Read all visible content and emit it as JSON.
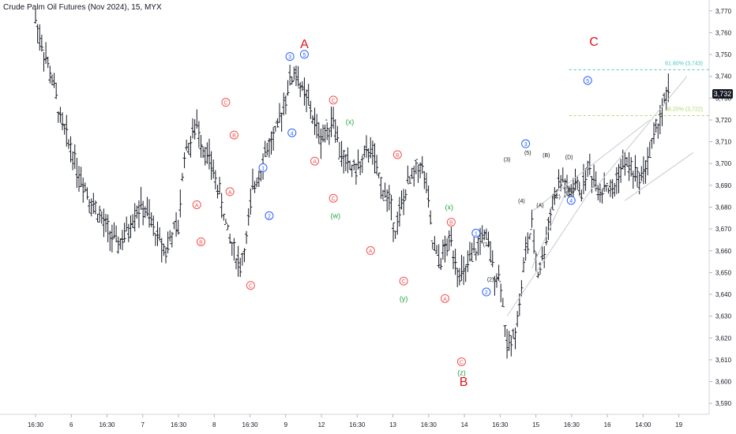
{
  "title": "Crude Palm Oil Futures (Nov 2024), 15, MYX",
  "chart_data": {
    "type": "bar",
    "title": "Crude Palm Oil Futures (Nov 2024), 15, MYX",
    "ylim": [
      3585,
      3775
    ],
    "y_ticks": [
      "3,590",
      "3,600",
      "3,610",
      "3,620",
      "3,630",
      "3,640",
      "3,650",
      "3,660",
      "3,670",
      "3,680",
      "3,690",
      "3,700",
      "3,710",
      "3,720",
      "3,730",
      "3,740",
      "3,750",
      "3,760",
      "3,770"
    ],
    "x_ticks": [
      "16:30",
      "6",
      "16:30",
      "7",
      "16:30",
      "8",
      "16:30",
      "9",
      "12",
      "16:30",
      "13",
      "16:30",
      "14",
      "16:30",
      "15",
      "16:30",
      "16",
      "14:00",
      "19"
    ],
    "last_price": "3,732",
    "fib_levels": [
      {
        "label": "61.80% (3,743)",
        "value": 3743,
        "color": "#4fc3c7"
      },
      {
        "label": "38.20% (3,722)",
        "value": 3722,
        "color": "#b7d36b"
      }
    ],
    "price_path": [
      [
        0,
        3766
      ],
      [
        3,
        3755
      ],
      [
        6,
        3745
      ],
      [
        9,
        3735
      ],
      [
        12,
        3720
      ],
      [
        15,
        3712
      ],
      [
        18,
        3705
      ],
      [
        21,
        3695
      ],
      [
        24,
        3690
      ],
      [
        27,
        3682
      ],
      [
        30,
        3678
      ],
      [
        33,
        3672
      ],
      [
        36,
        3668
      ],
      [
        39,
        3663
      ],
      [
        42,
        3665
      ],
      [
        45,
        3670
      ],
      [
        48,
        3678
      ],
      [
        51,
        3680
      ],
      [
        54,
        3677
      ],
      [
        57,
        3670
      ],
      [
        60,
        3665
      ],
      [
        63,
        3660
      ],
      [
        66,
        3668
      ],
      [
        69,
        3670
      ],
      [
        72,
        3705
      ],
      [
        75,
        3710
      ],
      [
        78,
        3718
      ],
      [
        81,
        3708
      ],
      [
        84,
        3702
      ],
      [
        87,
        3693
      ],
      [
        90,
        3682
      ],
      [
        93,
        3668
      ],
      [
        96,
        3660
      ],
      [
        99,
        3653
      ],
      [
        102,
        3665
      ],
      [
        105,
        3688
      ],
      [
        108,
        3696
      ],
      [
        111,
        3705
      ],
      [
        114,
        3710
      ],
      [
        117,
        3715
      ],
      [
        120,
        3728
      ],
      [
        123,
        3738
      ],
      [
        126,
        3742
      ],
      [
        129,
        3733
      ],
      [
        132,
        3728
      ],
      [
        135,
        3718
      ],
      [
        138,
        3712
      ],
      [
        141,
        3715
      ],
      [
        144,
        3722
      ],
      [
        147,
        3706
      ],
      [
        150,
        3700
      ],
      [
        153,
        3698
      ],
      [
        156,
        3698
      ],
      [
        159,
        3702
      ],
      [
        162,
        3708
      ],
      [
        165,
        3696
      ],
      [
        168,
        3688
      ],
      [
        171,
        3683
      ],
      [
        174,
        3670
      ],
      [
        177,
        3680
      ],
      [
        180,
        3690
      ],
      [
        183,
        3695
      ],
      [
        186,
        3700
      ],
      [
        189,
        3690
      ],
      [
        192,
        3663
      ],
      [
        195,
        3655
      ],
      [
        198,
        3660
      ],
      [
        201,
        3665
      ],
      [
        204,
        3652
      ],
      [
        207,
        3648
      ],
      [
        210,
        3655
      ],
      [
        213,
        3660
      ],
      [
        216,
        3668
      ],
      [
        219,
        3662
      ],
      [
        222,
        3650
      ],
      [
        225,
        3646
      ],
      [
        228,
        3615
      ],
      [
        231,
        3620
      ],
      [
        234,
        3635
      ],
      [
        237,
        3660
      ],
      [
        240,
        3670
      ],
      [
        243,
        3650
      ],
      [
        246,
        3660
      ],
      [
        249,
        3678
      ],
      [
        252,
        3688
      ],
      [
        255,
        3693
      ],
      [
        258,
        3685
      ],
      [
        261,
        3690
      ],
      [
        264,
        3688
      ],
      [
        267,
        3698
      ],
      [
        270,
        3693
      ],
      [
        273,
        3688
      ],
      [
        276,
        3690
      ],
      [
        279,
        3686
      ],
      [
        282,
        3696
      ],
      [
        285,
        3700
      ],
      [
        288,
        3698
      ],
      [
        291,
        3693
      ],
      [
        294,
        3696
      ],
      [
        297,
        3705
      ],
      [
        300,
        3715
      ],
      [
        303,
        3725
      ],
      [
        306,
        3732
      ]
    ],
    "trendlines": [
      {
        "from": [
          228,
          3630
        ],
        "to": [
          270,
          3690
        ]
      },
      {
        "from": [
          240,
          3678
        ],
        "to": [
          297,
          3720
        ]
      },
      {
        "from": [
          270,
          3688
        ],
        "to": [
          315,
          3740
        ]
      },
      {
        "from": [
          285,
          3683
        ],
        "to": [
          318,
          3705
        ]
      },
      {
        "from": [
          240,
          3652
        ],
        "to": [
          258,
          3690
        ]
      }
    ],
    "wave_labels": [
      {
        "text": "A",
        "x": 130,
        "y": 3753,
        "style": "big-red"
      },
      {
        "text": "B",
        "x": 207,
        "y": 3598,
        "style": "big-red"
      },
      {
        "text": "C",
        "x": 270,
        "y": 3754,
        "style": "big-red"
      },
      {
        "text": "A",
        "x": 78,
        "y": 3680,
        "style": "circle-red"
      },
      {
        "text": "B",
        "x": 80,
        "y": 3663,
        "style": "circle-red"
      },
      {
        "text": "C",
        "x": 92,
        "y": 3727,
        "style": "circle-red"
      },
      {
        "text": "B",
        "x": 96,
        "y": 3712,
        "style": "circle-red"
      },
      {
        "text": "A",
        "x": 94,
        "y": 3686,
        "style": "circle-red"
      },
      {
        "text": "C",
        "x": 104,
        "y": 3643,
        "style": "circle-red"
      },
      {
        "text": "1",
        "x": 110,
        "y": 3697,
        "style": "circle-blue"
      },
      {
        "text": "2",
        "x": 113,
        "y": 3675,
        "style": "circle-blue"
      },
      {
        "text": "3",
        "x": 123,
        "y": 3748,
        "style": "circle-blue"
      },
      {
        "text": "5",
        "x": 130,
        "y": 3749,
        "style": "circle-blue"
      },
      {
        "text": "4",
        "x": 124,
        "y": 3713,
        "style": "circle-blue"
      },
      {
        "text": "C",
        "x": 144,
        "y": 3728,
        "style": "circle-red"
      },
      {
        "text": "A",
        "x": 135,
        "y": 3700,
        "style": "circle-red"
      },
      {
        "text": "(x)",
        "x": 152,
        "y": 3718,
        "style": "green"
      },
      {
        "text": "C",
        "x": 144,
        "y": 3683,
        "style": "circle-red"
      },
      {
        "text": "(w)",
        "x": 145,
        "y": 3675,
        "style": "green"
      },
      {
        "text": "B",
        "x": 175,
        "y": 3703,
        "style": "circle-red"
      },
      {
        "text": "A",
        "x": 162,
        "y": 3659,
        "style": "circle-red"
      },
      {
        "text": "C",
        "x": 178,
        "y": 3645,
        "style": "circle-red"
      },
      {
        "text": "(y)",
        "x": 178,
        "y": 3637,
        "style": "green"
      },
      {
        "text": "A",
        "x": 198,
        "y": 3637,
        "style": "circle-red"
      },
      {
        "text": "(x)",
        "x": 200,
        "y": 3679,
        "style": "green"
      },
      {
        "text": "B",
        "x": 201,
        "y": 3672,
        "style": "circle-red"
      },
      {
        "text": "C",
        "x": 206,
        "y": 3608,
        "style": "circle-red"
      },
      {
        "text": "(z)",
        "x": 206,
        "y": 3603,
        "style": "green"
      },
      {
        "text": "1",
        "x": 213,
        "y": 3667,
        "style": "circle-blue"
      },
      {
        "text": "2",
        "x": 218,
        "y": 3640,
        "style": "circle-blue"
      },
      {
        "text": "(1)",
        "x": 218,
        "y": 3662,
        "style": "black"
      },
      {
        "text": "(2)",
        "x": 220,
        "y": 3646,
        "style": "black"
      },
      {
        "text": "(3)",
        "x": 228,
        "y": 3701,
        "style": "black"
      },
      {
        "text": "(4)",
        "x": 235,
        "y": 3682,
        "style": "black"
      },
      {
        "text": "3",
        "x": 237,
        "y": 3708,
        "style": "circle-blue"
      },
      {
        "text": "(5)",
        "x": 238,
        "y": 3704,
        "style": "black"
      },
      {
        "text": "(A)",
        "x": 244,
        "y": 3680,
        "style": "black"
      },
      {
        "text": "(B)",
        "x": 247,
        "y": 3703,
        "style": "black"
      },
      {
        "text": "(C)",
        "x": 252,
        "y": 3684,
        "style": "black"
      },
      {
        "text": "(D)",
        "x": 258,
        "y": 3702,
        "style": "black"
      },
      {
        "text": "(E)",
        "x": 259,
        "y": 3687,
        "style": "black"
      },
      {
        "text": "4",
        "x": 259,
        "y": 3682,
        "style": "circle-blue"
      },
      {
        "text": "5",
        "x": 267,
        "y": 3737,
        "style": "circle-blue"
      }
    ]
  }
}
